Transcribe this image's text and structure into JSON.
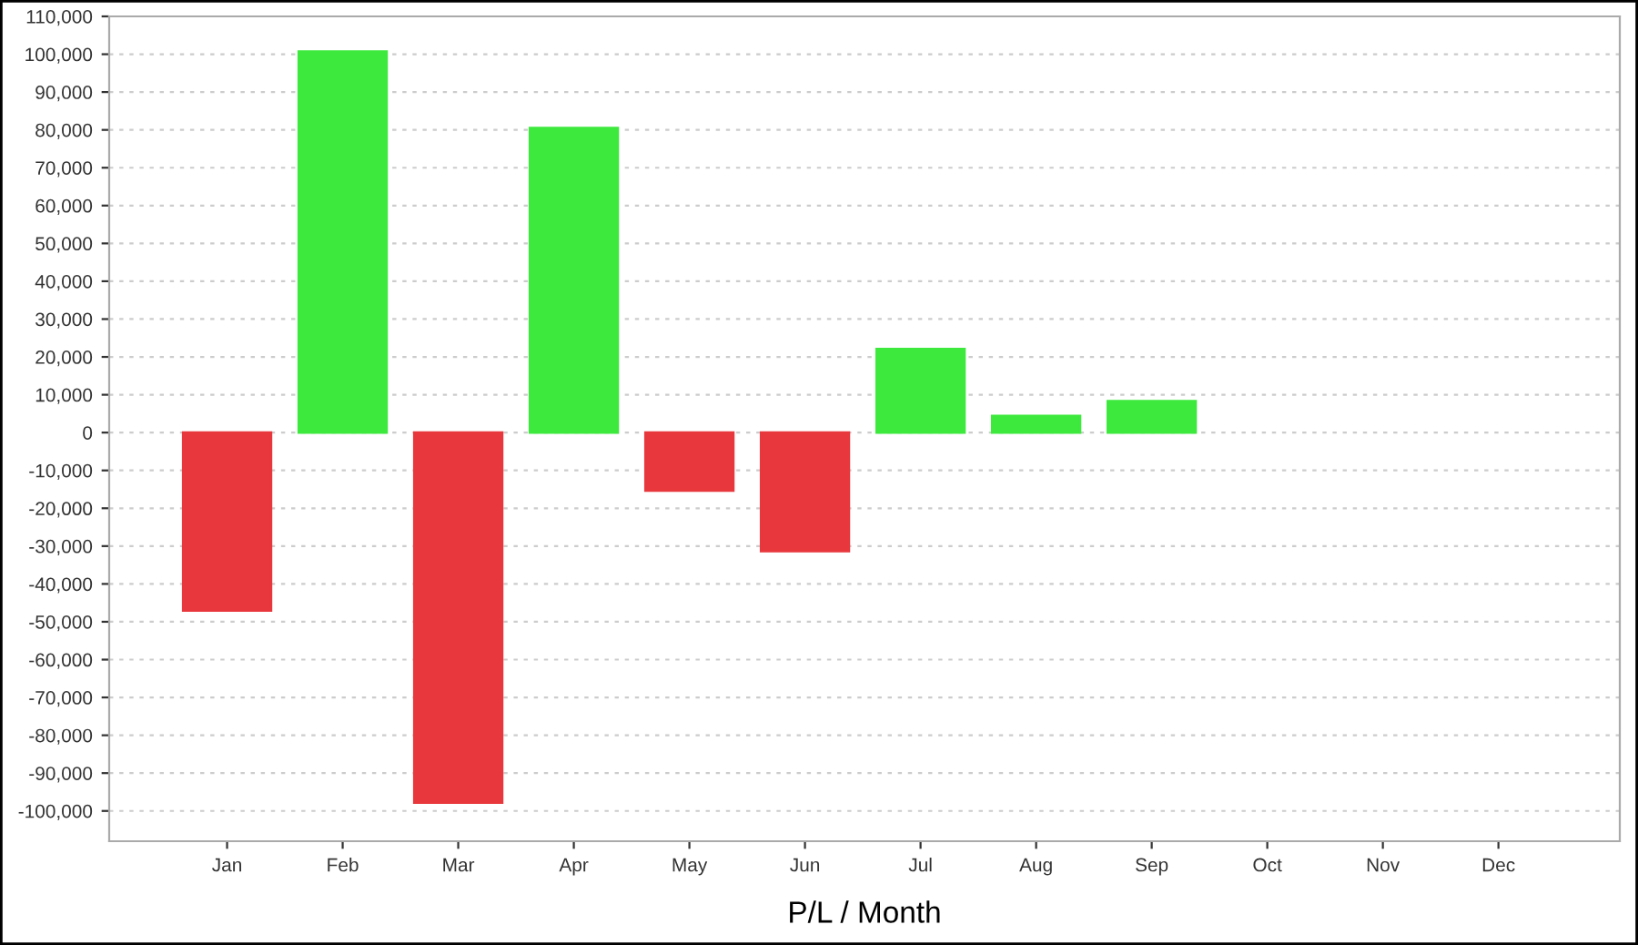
{
  "chart_data": {
    "type": "bar",
    "xlabel": "P/L / Month",
    "categories": [
      "Jan",
      "Feb",
      "Mar",
      "Apr",
      "May",
      "Jun",
      "Jul",
      "Aug",
      "Sep",
      "Oct",
      "Nov",
      "Dec"
    ],
    "values": [
      -47000,
      100700,
      -97800,
      80500,
      -15300,
      -31300,
      22100,
      4400,
      8300,
      null,
      null,
      null
    ],
    "colors": [
      "#e8383d",
      "#3de93d",
      "#e8383d",
      "#3de93d",
      "#e8383d",
      "#e8383d",
      "#3de93d",
      "#3de93d",
      "#3de93d",
      "#3de93d",
      "#3de93d",
      "#3de93d"
    ],
    "ylim": [
      -108000,
      110000
    ],
    "yticks": [
      {
        "value": -100000,
        "label": "-100,000"
      },
      {
        "value": -90000,
        "label": "-90,000"
      },
      {
        "value": -80000,
        "label": "-80,000"
      },
      {
        "value": -70000,
        "label": "-70,000"
      },
      {
        "value": -60000,
        "label": "-60,000"
      },
      {
        "value": -50000,
        "label": "-50,000"
      },
      {
        "value": -40000,
        "label": "-40,000"
      },
      {
        "value": -30000,
        "label": "-30,000"
      },
      {
        "value": -20000,
        "label": "-20,000"
      },
      {
        "value": -10000,
        "label": "-10,000"
      },
      0,
      {
        "value": 10000,
        "label": "10,000"
      },
      {
        "value": 20000,
        "label": "20,000"
      },
      {
        "value": 30000,
        "label": "30,000"
      },
      {
        "value": 40000,
        "label": "40,000"
      },
      {
        "value": 50000,
        "label": "50,000"
      },
      {
        "value": 60000,
        "label": "60,000"
      },
      {
        "value": 70000,
        "label": "70,000"
      },
      {
        "value": 80000,
        "label": "80,000"
      },
      {
        "value": 90000,
        "label": "90,000"
      },
      {
        "value": 100000,
        "label": "100,000"
      },
      {
        "value": 110000,
        "label": "110,000"
      }
    ],
    "grid": "y",
    "legend": false
  }
}
